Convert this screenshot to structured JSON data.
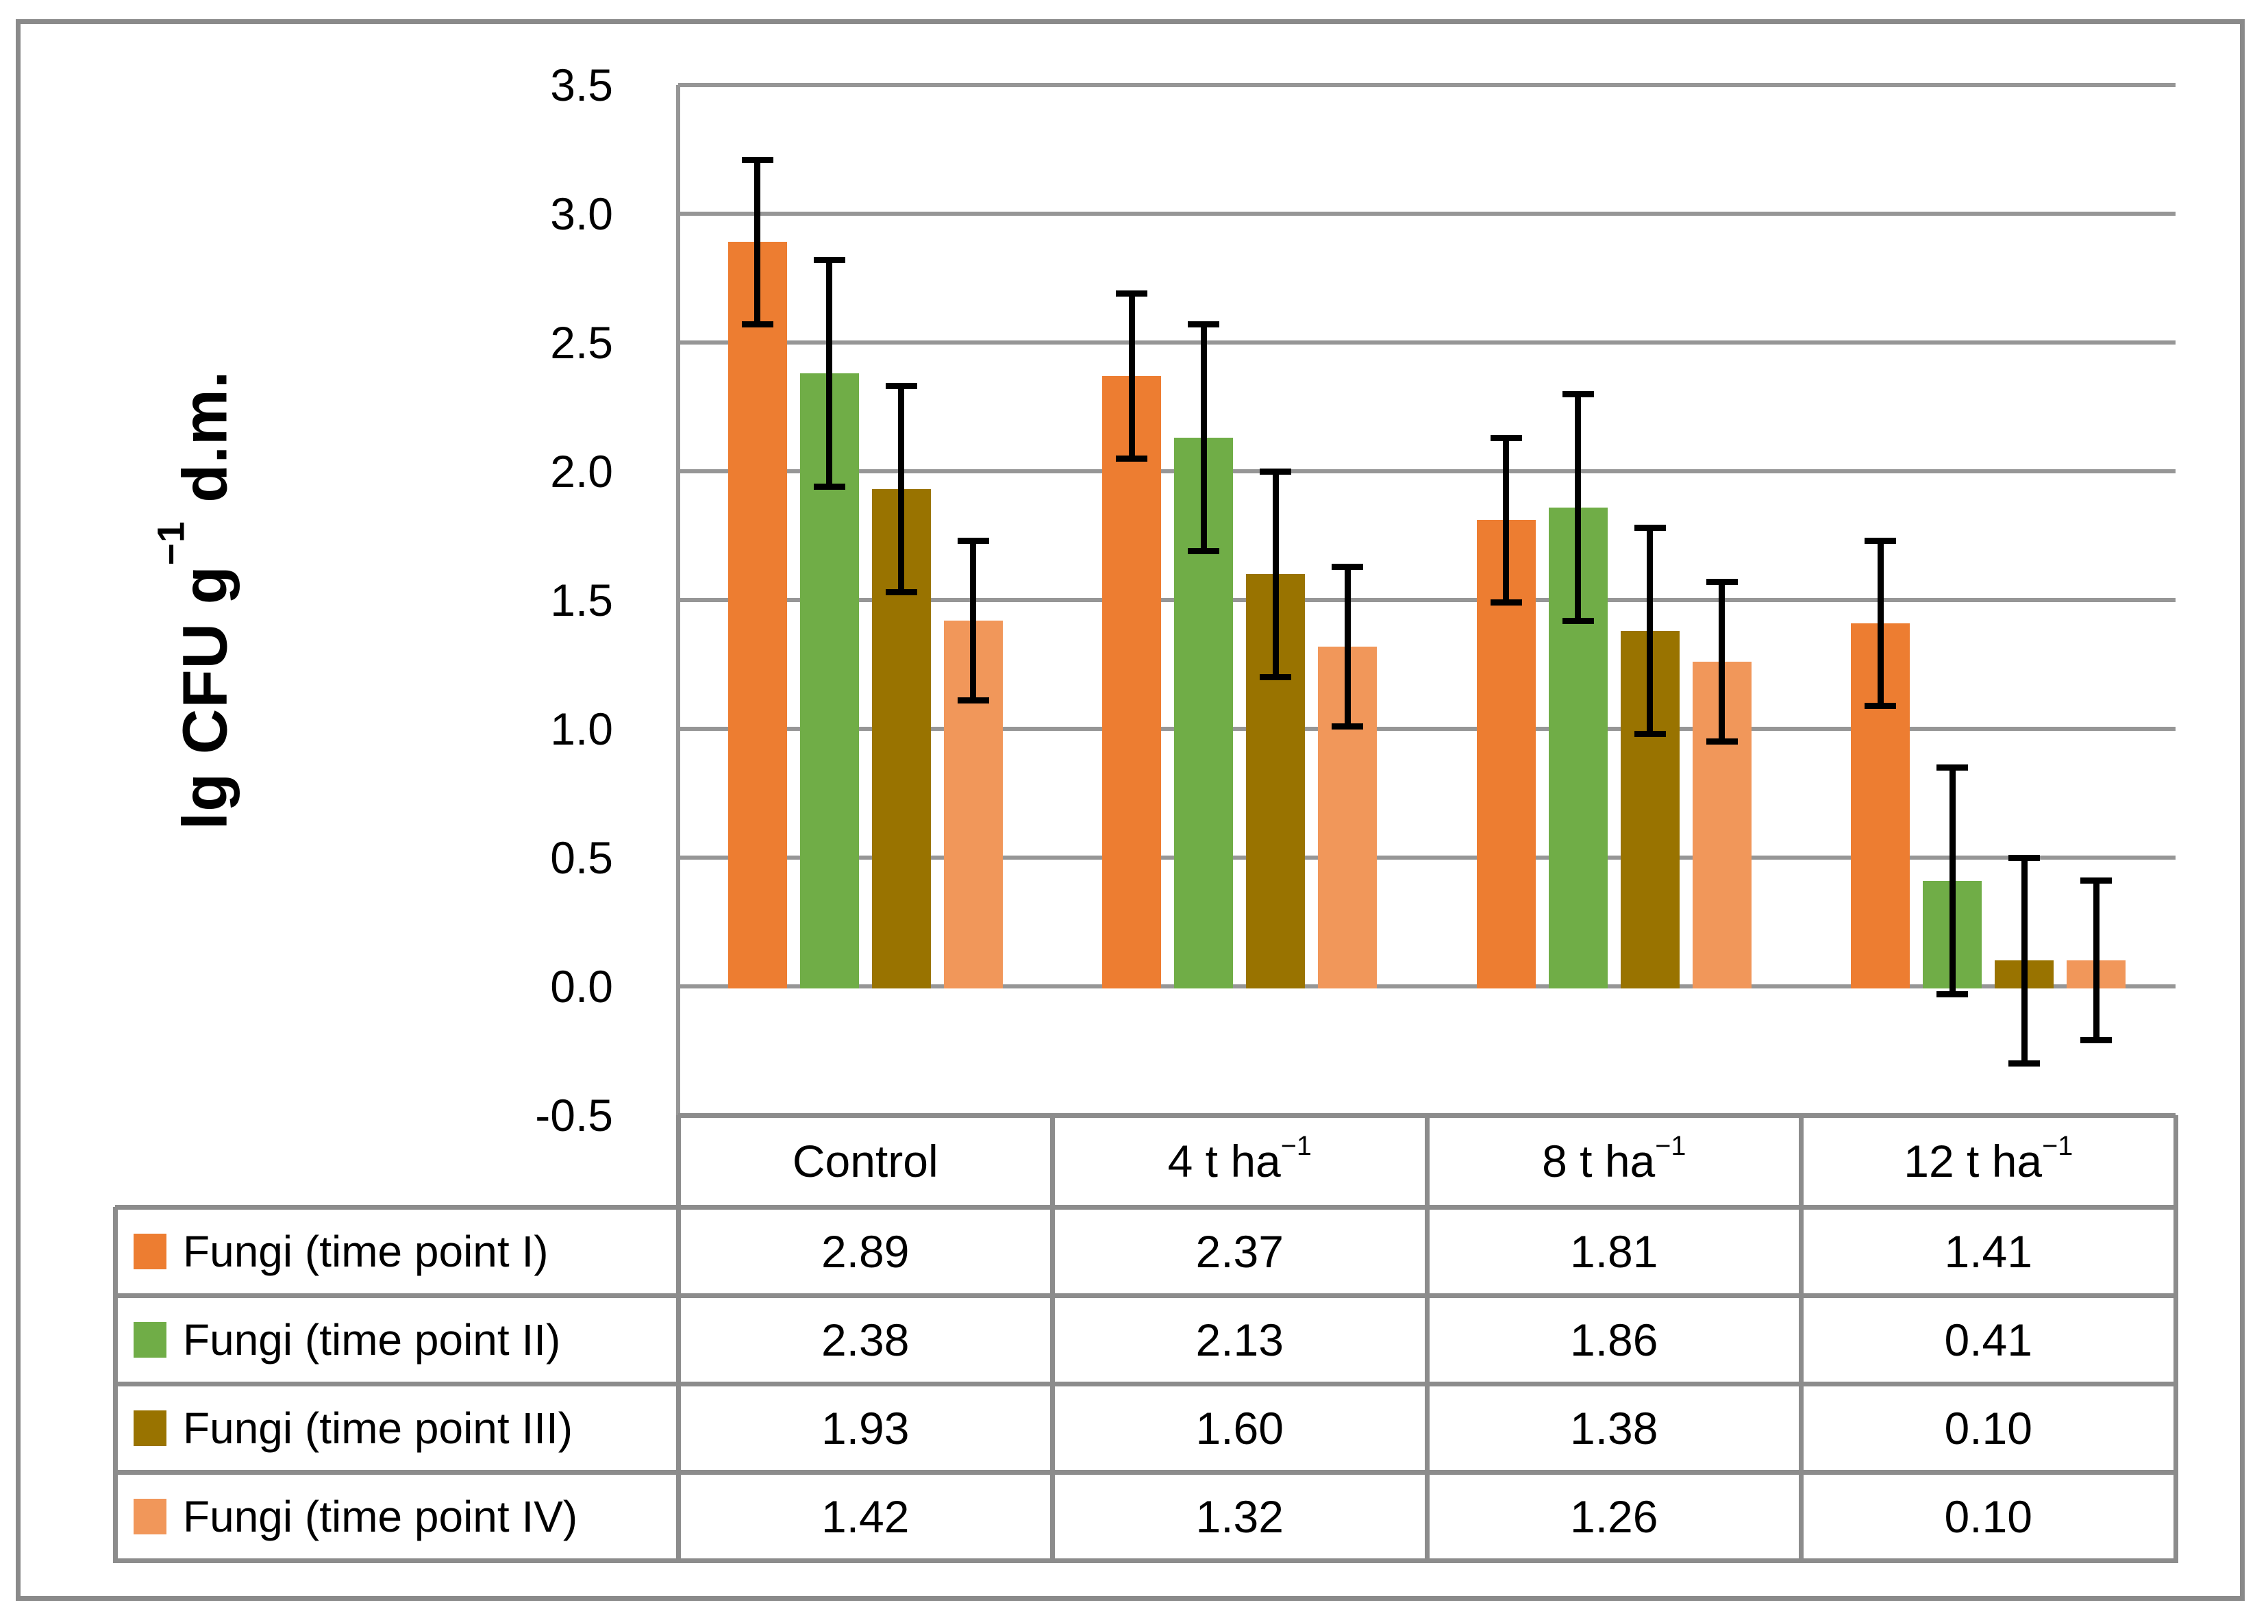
{
  "chart_data": {
    "type": "bar",
    "title": "",
    "ylabel": "lg CFU g−1 d.m.",
    "ylabel_parts": {
      "pre": "lg CFU g",
      "sup": "−1",
      "post": " d.m."
    },
    "ylim": [
      -0.5,
      3.5
    ],
    "ytick_step": 0.5,
    "y_ticks": [
      "3.5",
      "3.0",
      "2.5",
      "2.0",
      "1.5",
      "1.0",
      "0.5",
      "0.0",
      "-0.5"
    ],
    "grid": true,
    "legend_position": "table-left",
    "categories": [
      "Control",
      "4 t ha−1",
      "8 t ha−1",
      "12 t ha−1"
    ],
    "categories_parts": [
      {
        "base": "Control",
        "sup": ""
      },
      {
        "base": "4 t ha",
        "sup": "−1"
      },
      {
        "base": "8 t ha",
        "sup": "−1"
      },
      {
        "base": "12 t ha",
        "sup": "−1"
      }
    ],
    "series": [
      {
        "name": "Fungi (time point I)",
        "color": "#ED7D31",
        "values": [
          2.89,
          2.37,
          1.81,
          1.41
        ],
        "display": [
          "2.89",
          "2.37",
          "1.81",
          "1.41"
        ],
        "error": 0.32
      },
      {
        "name": "Fungi (time point II)",
        "color": "#70AD47",
        "values": [
          2.38,
          2.13,
          1.86,
          0.41
        ],
        "display": [
          "2.38",
          "2.13",
          "1.86",
          "0.41"
        ],
        "error": 0.44
      },
      {
        "name": "Fungi (time point III)",
        "color": "#997300",
        "values": [
          1.93,
          1.6,
          1.38,
          0.1
        ],
        "display": [
          "1.93",
          "1.60",
          "1.38",
          "0.10"
        ],
        "error": 0.4
      },
      {
        "name": "Fungi (time point IV)",
        "color": "#F1975A",
        "values": [
          1.42,
          1.32,
          1.26,
          0.1
        ],
        "display": [
          "1.42",
          "1.32",
          "1.26",
          "0.10"
        ],
        "error": 0.31
      }
    ]
  },
  "style": {
    "background": "#FFFFFF",
    "grid_color": "#969696",
    "table_border_color": "#8C8C8C",
    "frame_color": "#8A8A8A",
    "error_bar_color": "#000000",
    "text_color": "#000000"
  }
}
